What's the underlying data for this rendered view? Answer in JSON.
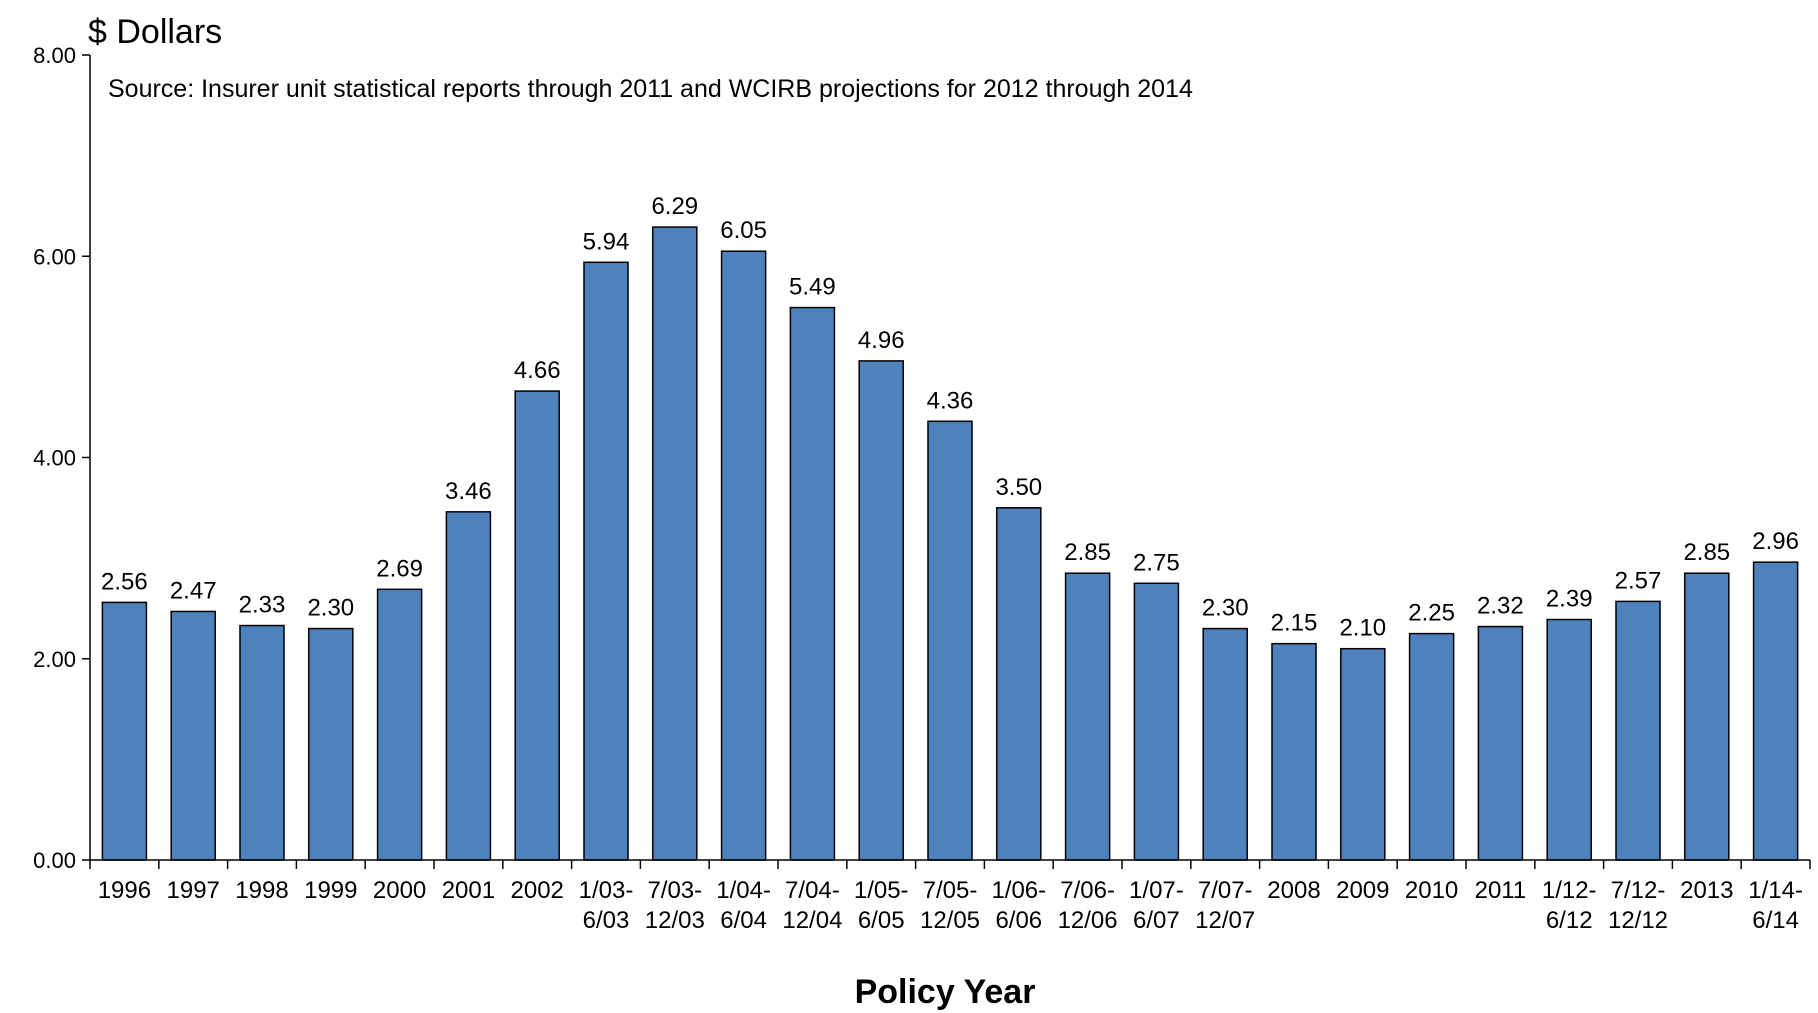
{
  "chart_data": {
    "type": "bar",
    "ylabel": "$ Dollars",
    "xlabel": "Policy Year",
    "note": "Source: Insurer unit statistical reports through 2011 and WCIRB projections for 2012 through 2014",
    "ylim": [
      0,
      8
    ],
    "yticks": [
      "0.00",
      "2.00",
      "4.00",
      "6.00",
      "8.00"
    ],
    "bar_color": "#4f81bd",
    "grid": false,
    "categories": [
      [
        "1996"
      ],
      [
        "1997"
      ],
      [
        "1998"
      ],
      [
        "1999"
      ],
      [
        "2000"
      ],
      [
        "2001"
      ],
      [
        "2002"
      ],
      [
        "1/03-",
        "6/03"
      ],
      [
        "7/03-",
        "12/03"
      ],
      [
        "1/04-",
        "6/04"
      ],
      [
        "7/04-",
        "12/04"
      ],
      [
        "1/05-",
        "6/05"
      ],
      [
        "7/05-",
        "12/05"
      ],
      [
        "1/06-",
        "6/06"
      ],
      [
        "7/06-",
        "12/06"
      ],
      [
        "1/07-",
        "6/07"
      ],
      [
        "7/07-",
        "12/07"
      ],
      [
        "2008"
      ],
      [
        "2009"
      ],
      [
        "2010"
      ],
      [
        "2011"
      ],
      [
        "1/12-",
        "6/12"
      ],
      [
        "7/12-",
        "12/12"
      ],
      [
        "2013"
      ],
      [
        "1/14-",
        "6/14"
      ]
    ],
    "values": [
      2.56,
      2.47,
      2.33,
      2.3,
      2.69,
      3.46,
      4.66,
      5.94,
      6.29,
      6.05,
      5.49,
      4.96,
      4.36,
      3.5,
      2.85,
      2.75,
      2.3,
      2.15,
      2.1,
      2.25,
      2.32,
      2.39,
      2.57,
      2.85,
      2.96
    ],
    "value_labels": [
      "2.56",
      "2.47",
      "2.33",
      "2.30",
      "2.69",
      "3.46",
      "4.66",
      "5.94",
      "6.29",
      "6.05",
      "5.49",
      "4.96",
      "4.36",
      "3.50",
      "2.85",
      "2.75",
      "2.30",
      "2.15",
      "2.10",
      "2.25",
      "2.32",
      "2.39",
      "2.57",
      "2.85",
      "2.96"
    ]
  }
}
